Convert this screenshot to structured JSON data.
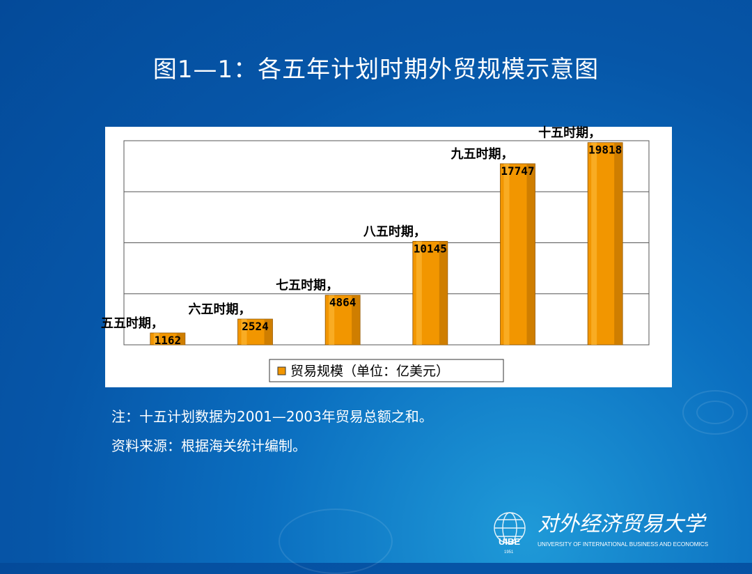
{
  "slide": {
    "title": "图1—1：各五年计划时期外贸规模示意图",
    "note": "注：十五计划数据为2001—2003年贸易总额之和。",
    "source": "资料来源：根据海关统计编制。"
  },
  "logo": {
    "icon": "uibe-globe-logo",
    "badge": "UIBE",
    "year": "1951",
    "name_cn": "对外经济贸易大学",
    "name_en": "UNIVERSITY OF INTERNATIONAL BUSINESS AND ECONOMICS"
  },
  "colors": {
    "bar": "#f29600",
    "bar_shade": "#c07400",
    "background": "#0656a8"
  },
  "chart_data": {
    "type": "bar",
    "categories": [
      "五五时期",
      "六五时期",
      "七五时期",
      "八五时期",
      "九五时期",
      "十五时期"
    ],
    "series": [
      {
        "name": "贸易规模（单位：亿美元）",
        "values": [
          1162,
          2524,
          4864,
          10145,
          17747,
          19818
        ]
      }
    ],
    "data_labels": [
      "五五时期，\n1162",
      "六五时期，\n2524",
      "七五时期，\n4864",
      "八五时期，\n10145",
      "九五时期，\n17747",
      "十五时期，\n19818"
    ],
    "legend": "贸易规模（单位：亿美元）",
    "legend_position": "bottom",
    "ylim": [
      0,
      20000
    ],
    "grid": true,
    "title": "",
    "xlabel": "",
    "ylabel": ""
  }
}
